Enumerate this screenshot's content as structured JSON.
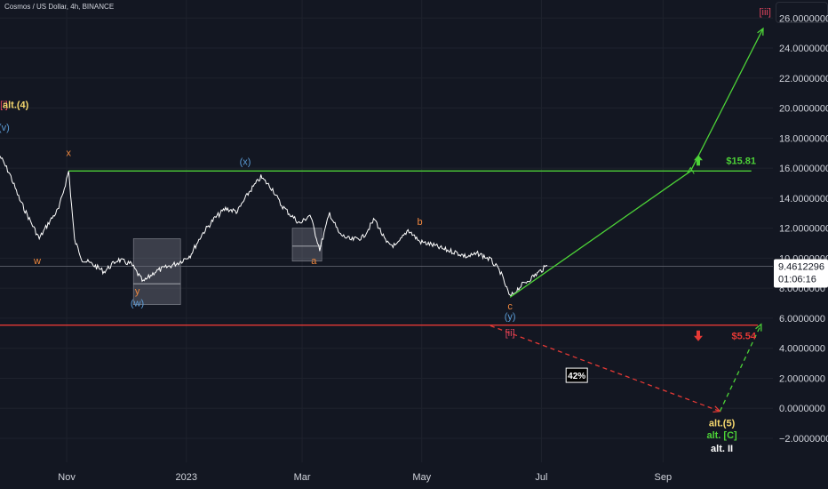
{
  "header": {
    "title": "Cosmos / US Dollar, 4h, BINANCE"
  },
  "colors": {
    "background": "#131722",
    "grid": "#1e222d",
    "price_line": "#ffffff",
    "green": "#4cd137",
    "red": "#e53935",
    "orange": "#f0883e",
    "blue": "#5b9bd5",
    "crimson": "#e0455e",
    "yellow": "#f5d76e",
    "box": "#787b86"
  },
  "chart_data": {
    "type": "line",
    "title": "Cosmos / US Dollar, 4h, BINANCE",
    "series": [
      {
        "values_note": "",
        "x": [
          "2022-09-28",
          "2022-10-03",
          "2022-10-08",
          "2022-10-13",
          "2022-10-18",
          "2022-10-23",
          "2022-10-28",
          "2022-11-02",
          "2022-11-05",
          "2022-11-09",
          "2022-11-14",
          "2022-11-20",
          "2022-11-27",
          "2022-12-04",
          "2022-12-10",
          "2022-12-16",
          "2022-12-22",
          "2022-12-28",
          "2023-01-03",
          "2023-01-09",
          "2023-01-15",
          "2023-01-21",
          "2023-01-27",
          "2023-02-02",
          "2023-02-08",
          "2023-02-14",
          "2023-02-18",
          "2023-02-23",
          "2023-02-28",
          "2023-03-05",
          "2023-03-10",
          "2023-03-15",
          "2023-03-20",
          "2023-03-26",
          "2023-04-01",
          "2023-04-07",
          "2023-04-13",
          "2023-04-18",
          "2023-04-24",
          "2023-04-30",
          "2023-05-06",
          "2023-05-12",
          "2023-05-18",
          "2023-05-24",
          "2023-05-30",
          "2023-06-05",
          "2023-06-10",
          "2023-06-15",
          "2023-06-20",
          "2023-06-25",
          "2023-06-30",
          "2023-07-04"
        ],
        "values": [
          16.8,
          15.6,
          13.9,
          12.6,
          11.3,
          12.4,
          13.3,
          15.8,
          11.2,
          9.9,
          9.6,
          9.1,
          9.9,
          9.6,
          8.4,
          9.1,
          9.4,
          9.7,
          10.2,
          11.6,
          12.6,
          13.3,
          13.1,
          14.4,
          15.4,
          14.6,
          13.6,
          12.9,
          12.3,
          12.9,
          10.6,
          13.0,
          11.6,
          11.2,
          11.4,
          12.6,
          11.0,
          10.8,
          11.9,
          11.1,
          10.9,
          10.6,
          10.4,
          10.1,
          10.3,
          9.9,
          9.1,
          7.4,
          8.1,
          8.6,
          9.1,
          9.5
        ]
      }
    ],
    "x_ticks": [
      "Nov",
      "2023",
      "Mar",
      "May",
      "Jul",
      "Sep"
    ],
    "y_ticks": [
      "26.0000000",
      "24.0000000",
      "22.0000000",
      "20.0000000",
      "18.0000000",
      "16.0000000",
      "14.0000000",
      "12.0000000",
      "10.0000000",
      "8.0000000",
      "6.0000000",
      "4.0000000",
      "2.0000000",
      "0.0000000",
      "−2.0000000"
    ],
    "ylim": [
      -3.6,
      27.2
    ],
    "xlim": [
      "2022-09-28",
      "2023-10-27"
    ],
    "grid": true,
    "current_price": {
      "value": 9.4612296,
      "label": "9.4612296",
      "countdown": "01:06:16"
    },
    "levels": [
      {
        "name": "resistance",
        "value": 15.81,
        "label": "$15.81",
        "from": "2022-11-02",
        "to": "2023-10-16",
        "color": "green"
      },
      {
        "name": "support",
        "value": 5.54,
        "label": "$5.54",
        "from": "2022-09-28",
        "to": "2023-10-27",
        "color": "red"
      }
    ],
    "projections": [
      {
        "name": "up-projection",
        "style": "solid",
        "color": "green",
        "points": [
          [
            "2023-06-15",
            7.4
          ],
          [
            "2023-09-15",
            15.8
          ],
          [
            "2023-10-22",
            25.3
          ]
        ]
      },
      {
        "name": "down-projection",
        "style": "dashed",
        "color": "red",
        "points": [
          [
            "2023-06-05",
            5.5
          ],
          [
            "2023-09-30",
            -0.2
          ]
        ]
      },
      {
        "name": "alt-up-projection",
        "style": "dashed",
        "color": "green",
        "points": [
          [
            "2023-09-30",
            -0.2
          ],
          [
            "2023-10-21",
            5.6
          ]
        ]
      }
    ],
    "boxes": [
      {
        "name": "w-y-zone",
        "from": "2022-12-05",
        "to": "2022-12-29",
        "low": 6.9,
        "high": 11.3,
        "divider": 8.3
      },
      {
        "name": "x-a-zone",
        "from": "2023-02-24",
        "to": "2023-03-11",
        "low": 9.8,
        "high": 12.0,
        "divider": 10.8
      }
    ],
    "annotations": [
      {
        "text": "[i]",
        "date": "2022-09-30",
        "value": 20.0,
        "color": "crimson"
      },
      {
        "text": "alt.(4)",
        "date": "2022-10-06",
        "value": 20.0,
        "color": "yellow"
      },
      {
        "text": "(v)",
        "date": "2022-09-30",
        "value": 18.5,
        "color": "blue"
      },
      {
        "text": "x",
        "date": "2022-11-02",
        "value": 16.8,
        "color": "orange"
      },
      {
        "text": "w",
        "date": "2022-10-17",
        "value": 9.6,
        "color": "orange"
      },
      {
        "text": "y",
        "date": "2022-12-07",
        "value": 7.6,
        "color": "orange"
      },
      {
        "text": "(w)",
        "date": "2022-12-07",
        "value": 6.8,
        "color": "blue"
      },
      {
        "text": "(x)",
        "date": "2023-01-31",
        "value": 16.2,
        "color": "blue"
      },
      {
        "text": "a",
        "date": "2023-03-07",
        "value": 9.6,
        "color": "orange"
      },
      {
        "text": "b",
        "date": "2023-04-30",
        "value": 12.2,
        "color": "orange"
      },
      {
        "text": "c",
        "date": "2023-06-15",
        "value": 6.6,
        "color": "orange"
      },
      {
        "text": "(y)",
        "date": "2023-06-15",
        "value": 5.9,
        "color": "blue"
      },
      {
        "text": "[ii]",
        "date": "2023-06-15",
        "value": 4.8,
        "color": "crimson"
      },
      {
        "text": "[iii]",
        "date": "2023-10-23",
        "value": 26.2,
        "color": "crimson"
      },
      {
        "text": "alt.(5)",
        "date": "2023-10-01",
        "value": -1.2,
        "color": "yellow"
      },
      {
        "text": "alt. [C]",
        "date": "2023-10-01",
        "value": -2.0,
        "color": "green"
      },
      {
        "text": "alt. II",
        "date": "2023-10-01",
        "value": -2.9,
        "color": "white"
      }
    ],
    "probability": {
      "label": "42%",
      "date": "2023-07-19",
      "value": 2.2
    }
  }
}
